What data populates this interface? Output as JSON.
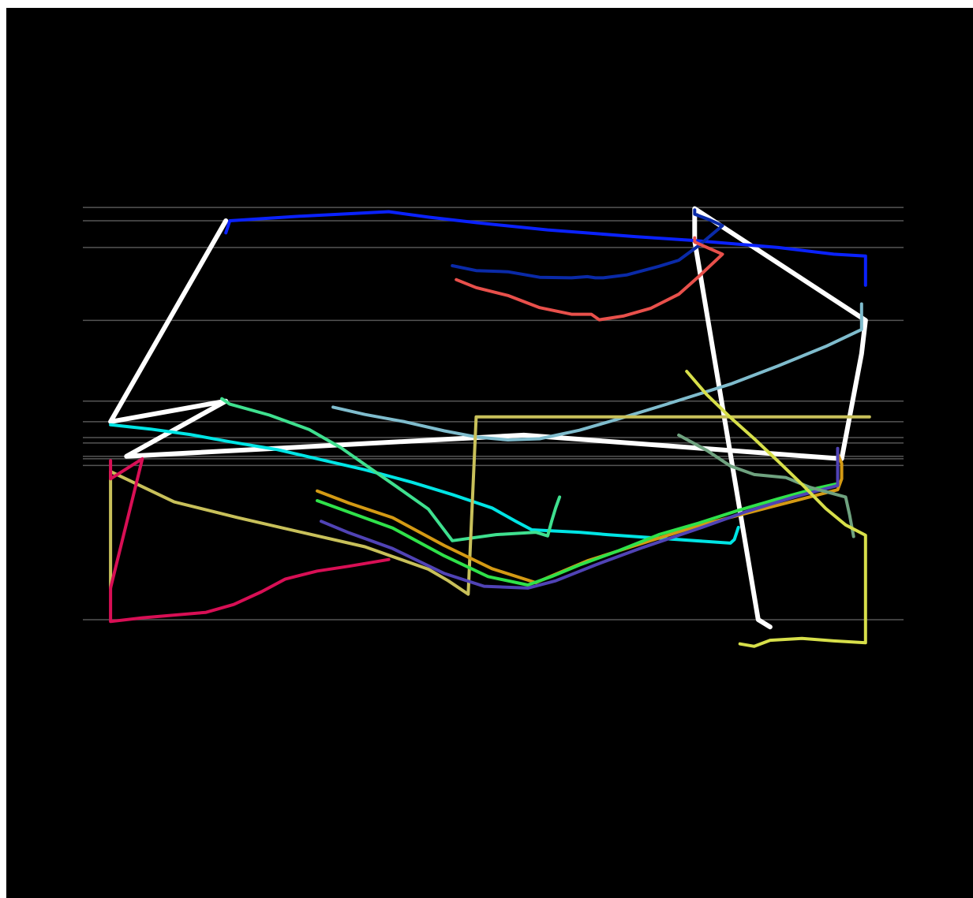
{
  "chart_data": {
    "type": "line",
    "title": "",
    "xlabel": "",
    "ylabel": "",
    "grid": "horizontal",
    "background": "#000000",
    "gridline_color": "#555555",
    "xlim": [
      0,
      1000
    ],
    "ylim": [
      0,
      1000
    ],
    "gridlines_y": [
      957,
      935,
      891,
      771,
      638,
      604,
      578,
      569,
      547,
      543,
      532,
      278
    ],
    "series": [
      {
        "color": "#ffffff",
        "width": 6,
        "points": [
          [
            165,
            935
          ],
          [
            165,
            935
          ],
          [
            20,
            604
          ],
          [
            165,
            638
          ],
          [
            40,
            547
          ],
          [
            540,
            582
          ],
          [
            940,
            543
          ],
          [
            965,
            716
          ],
          [
            970,
            771
          ],
          [
            755,
            955
          ],
          [
            755,
            902
          ],
          [
            835,
            278
          ],
          [
            850,
            266
          ]
        ]
      },
      {
        "color": "#0a22ff",
        "width": 4,
        "points": [
          [
            165,
            915
          ],
          [
            170,
            935
          ],
          [
            250,
            942
          ],
          [
            370,
            950
          ],
          [
            420,
            941
          ],
          [
            480,
            932
          ],
          [
            570,
            920
          ],
          [
            680,
            909
          ],
          [
            750,
            903
          ],
          [
            860,
            891
          ],
          [
            930,
            880
          ],
          [
            970,
            877
          ],
          [
            970,
            829
          ]
        ]
      },
      {
        "color": "#0a2aa8",
        "width": 4,
        "points": [
          [
            450,
            861
          ],
          [
            480,
            853
          ],
          [
            520,
            851
          ],
          [
            560,
            842
          ],
          [
            600,
            841
          ],
          [
            620,
            843
          ],
          [
            630,
            841
          ],
          [
            640,
            841
          ],
          [
            670,
            846
          ],
          [
            710,
            860
          ],
          [
            735,
            870
          ],
          [
            760,
            894
          ],
          [
            790,
            927
          ],
          [
            775,
            936
          ],
          [
            755,
            946
          ],
          [
            755,
            953
          ]
        ]
      },
      {
        "color": "#e8504b",
        "width": 4,
        "points": [
          [
            455,
            838
          ],
          [
            480,
            825
          ],
          [
            520,
            812
          ],
          [
            560,
            792
          ],
          [
            600,
            781
          ],
          [
            625,
            781
          ],
          [
            635,
            772
          ],
          [
            665,
            778
          ],
          [
            700,
            791
          ],
          [
            735,
            814
          ],
          [
            760,
            843
          ],
          [
            790,
            880
          ],
          [
            755,
            900
          ],
          [
            755,
            907
          ]
        ]
      },
      {
        "color": "#7fbccd",
        "width": 4,
        "points": [
          [
            300,
            628
          ],
          [
            340,
            616
          ],
          [
            390,
            604
          ],
          [
            440,
            589
          ],
          [
            480,
            579
          ],
          [
            520,
            574
          ],
          [
            560,
            576
          ],
          [
            610,
            590
          ],
          [
            660,
            609
          ],
          [
            720,
            633
          ],
          [
            800,
            666
          ],
          [
            860,
            696
          ],
          [
            920,
            728
          ],
          [
            965,
            756
          ],
          [
            965,
            798
          ]
        ]
      },
      {
        "color": "#00e5e5",
        "width": 4,
        "points": [
          [
            20,
            599
          ],
          [
            70,
            592
          ],
          [
            120,
            583
          ],
          [
            170,
            571
          ],
          [
            230,
            558
          ],
          [
            280,
            543
          ],
          [
            340,
            525
          ],
          [
            400,
            504
          ],
          [
            450,
            484
          ],
          [
            500,
            462
          ],
          [
            530,
            440
          ],
          [
            550,
            426
          ],
          [
            610,
            422
          ],
          [
            645,
            418
          ],
          [
            800,
            404
          ],
          [
            805,
            410
          ],
          [
            810,
            430
          ]
        ]
      },
      {
        "color": "#3fe08f",
        "width": 4,
        "points": [
          [
            160,
            642
          ],
          [
            170,
            633
          ],
          [
            220,
            615
          ],
          [
            270,
            591
          ],
          [
            310,
            561
          ],
          [
            345,
            529
          ],
          [
            380,
            497
          ],
          [
            420,
            460
          ],
          [
            450,
            408
          ],
          [
            505,
            418
          ],
          [
            555,
            422
          ],
          [
            570,
            416
          ],
          [
            575,
            440
          ],
          [
            580,
            462
          ],
          [
            585,
            480
          ]
        ]
      },
      {
        "color": "#c8c05a",
        "width": 4,
        "points": [
          [
            20,
            330
          ],
          [
            20,
            510
          ],
          [
            20,
            522
          ],
          [
            100,
            472
          ],
          [
            180,
            446
          ],
          [
            260,
            422
          ],
          [
            340,
            398
          ],
          [
            420,
            361
          ],
          [
            445,
            342
          ],
          [
            470,
            320
          ],
          [
            480,
            612
          ],
          [
            520,
            612
          ],
          [
            560,
            612
          ],
          [
            600,
            612
          ],
          [
            620,
            612
          ],
          [
            650,
            612
          ],
          [
            680,
            612
          ],
          [
            710,
            612
          ],
          [
            750,
            612
          ],
          [
            800,
            612
          ],
          [
            850,
            612
          ],
          [
            900,
            612
          ],
          [
            950,
            612
          ],
          [
            975,
            612
          ],
          [
            975,
            612
          ]
        ]
      },
      {
        "color": "#d80f55",
        "width": 4,
        "points": [
          [
            20,
            540
          ],
          [
            20,
            510
          ],
          [
            60,
            543
          ],
          [
            20,
            330
          ],
          [
            20,
            275
          ],
          [
            60,
            281
          ],
          [
            140,
            290
          ],
          [
            175,
            303
          ],
          [
            210,
            324
          ],
          [
            240,
            345
          ],
          [
            280,
            358
          ],
          [
            320,
            366
          ],
          [
            370,
            377
          ]
        ]
      },
      {
        "color": "#d49a14",
        "width": 4,
        "points": [
          [
            280,
            490
          ],
          [
            320,
            470
          ],
          [
            375,
            446
          ],
          [
            440,
            400
          ],
          [
            500,
            362
          ],
          [
            555,
            339
          ],
          [
            620,
            375
          ],
          [
            680,
            400
          ],
          [
            760,
            433
          ],
          [
            855,
            465
          ],
          [
            935,
            492
          ],
          [
            940,
            510
          ],
          [
            940,
            535
          ],
          [
            935,
            551
          ]
        ]
      },
      {
        "color": "#2fe24a",
        "width": 4,
        "points": [
          [
            280,
            474
          ],
          [
            320,
            455
          ],
          [
            375,
            429
          ],
          [
            440,
            383
          ],
          [
            495,
            349
          ],
          [
            545,
            335
          ],
          [
            575,
            349
          ],
          [
            610,
            368
          ],
          [
            660,
            392
          ],
          [
            710,
            418
          ],
          [
            760,
            437
          ],
          [
            810,
            458
          ],
          [
            860,
            477
          ],
          [
            910,
            495
          ],
          [
            935,
            502
          ],
          [
            935,
            540
          ]
        ]
      },
      {
        "color": "#5043b5",
        "width": 4,
        "points": [
          [
            285,
            440
          ],
          [
            320,
            421
          ],
          [
            375,
            395
          ],
          [
            440,
            354
          ],
          [
            490,
            333
          ],
          [
            545,
            330
          ],
          [
            580,
            342
          ],
          [
            630,
            368
          ],
          [
            690,
            397
          ],
          [
            760,
            428
          ],
          [
            820,
            456
          ],
          [
            880,
            480
          ],
          [
            935,
            499
          ],
          [
            935,
            560
          ]
        ]
      },
      {
        "color": "#6fa27f",
        "width": 4,
        "points": [
          [
            735,
            582
          ],
          [
            770,
            557
          ],
          [
            800,
            531
          ],
          [
            830,
            517
          ],
          [
            870,
            512
          ],
          [
            900,
            496
          ],
          [
            945,
            480
          ],
          [
            950,
            450
          ],
          [
            955,
            415
          ]
        ]
      },
      {
        "color": "#d7df4a",
        "width": 4,
        "points": [
          [
            745,
            687
          ],
          [
            770,
            649
          ],
          [
            800,
            611
          ],
          [
            830,
            576
          ],
          [
            860,
            539
          ],
          [
            890,
            501
          ],
          [
            920,
            461
          ],
          [
            945,
            434
          ],
          [
            970,
            417
          ],
          [
            970,
            357
          ],
          [
            970,
            240
          ],
          [
            930,
            243
          ],
          [
            890,
            247
          ],
          [
            850,
            244
          ],
          [
            830,
            234
          ],
          [
            812,
            238
          ]
        ]
      }
    ]
  }
}
